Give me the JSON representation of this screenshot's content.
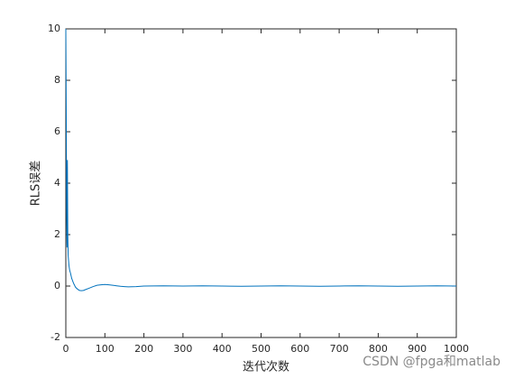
{
  "chart_data": {
    "type": "line",
    "xlabel": "迭代次数",
    "ylabel": "RLS误差",
    "x": [
      0,
      1,
      2,
      3,
      4,
      5,
      6,
      8,
      10,
      12,
      15,
      20,
      25,
      30,
      35,
      40,
      45,
      50,
      60,
      70,
      80,
      90,
      100,
      110,
      120,
      130,
      140,
      150,
      160,
      180,
      200,
      250,
      300,
      350,
      400,
      450,
      500,
      550,
      600,
      650,
      700,
      750,
      800,
      850,
      900,
      950,
      1000
    ],
    "series": [
      {
        "color": "#0072bd",
        "values": [
          10,
          7,
          3,
          1.5,
          4.9,
          2,
          1.2,
          0.8,
          0.6,
          0.5,
          0.3,
          0.1,
          -0.05,
          -0.12,
          -0.17,
          -0.18,
          -0.17,
          -0.14,
          -0.08,
          -0.02,
          0.03,
          0.05,
          0.06,
          0.05,
          0.03,
          0.01,
          -0.01,
          -0.02,
          -0.03,
          -0.02,
          0,
          0.01,
          0,
          0.01,
          0,
          -0.01,
          0,
          0.01,
          0,
          -0.01,
          0,
          0.01,
          0,
          -0.01,
          0,
          0.01,
          0
        ]
      }
    ],
    "xlim": [
      0,
      1000
    ],
    "xticks": [
      0,
      100,
      200,
      300,
      400,
      500,
      600,
      700,
      800,
      900,
      1000
    ],
    "ylim": [
      -2,
      10
    ],
    "yticks": [
      -2,
      0,
      2,
      4,
      6,
      8,
      10
    ],
    "grid": false,
    "watermark": "CSDN @fpga和matlab"
  }
}
